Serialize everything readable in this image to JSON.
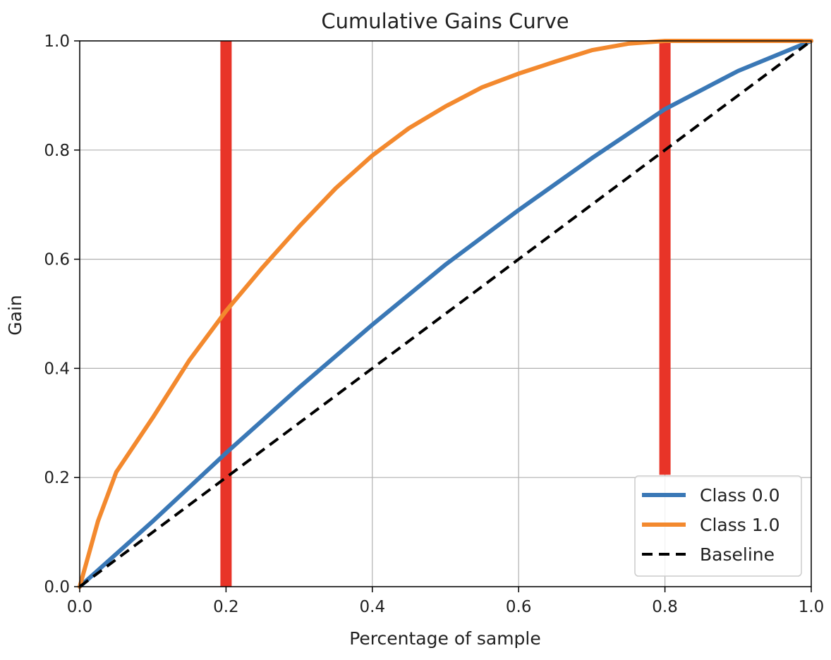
{
  "chart_data": {
    "type": "line",
    "title": "Cumulative Gains Curve",
    "xlabel": "Percentage of sample",
    "ylabel": "Gain",
    "xlim": [
      0,
      1
    ],
    "ylim": [
      0,
      1
    ],
    "xticks": [
      "0.0",
      "0.2",
      "0.4",
      "0.6",
      "0.8",
      "1.0"
    ],
    "yticks": [
      "0.0",
      "0.2",
      "0.4",
      "0.6",
      "0.8",
      "1.0"
    ],
    "grid": true,
    "legend_position": "lower-right",
    "series": [
      {
        "name": "Class 0.0",
        "color": "#3a78b6",
        "style": "solid",
        "x": [
          0,
          0.1,
          0.2,
          0.3,
          0.4,
          0.5,
          0.6,
          0.7,
          0.8,
          0.9,
          1.0
        ],
        "y": [
          0,
          0.12,
          0.245,
          0.365,
          0.48,
          0.59,
          0.69,
          0.785,
          0.875,
          0.945,
          1.0
        ]
      },
      {
        "name": "Class 1.0",
        "color": "#f3892e",
        "style": "solid",
        "x": [
          0,
          0.025,
          0.05,
          0.1,
          0.15,
          0.2,
          0.25,
          0.3,
          0.35,
          0.4,
          0.45,
          0.5,
          0.55,
          0.6,
          0.65,
          0.7,
          0.75,
          0.8,
          0.85,
          0.9,
          0.95,
          1.0
        ],
        "y": [
          0,
          0.12,
          0.21,
          0.31,
          0.415,
          0.505,
          0.585,
          0.66,
          0.73,
          0.79,
          0.84,
          0.88,
          0.915,
          0.94,
          0.962,
          0.983,
          0.995,
          1.0,
          1.0,
          1.0,
          1.0,
          1.0
        ]
      },
      {
        "name": "Baseline",
        "color": "#000000",
        "style": "dashed",
        "x": [
          0,
          1
        ],
        "y": [
          0,
          1
        ]
      }
    ],
    "annotations": [
      {
        "type": "vertical-line",
        "x": 0.2,
        "y_from": 0,
        "y_to": 1,
        "color": "#e83428"
      },
      {
        "type": "vertical-line",
        "x": 0.8,
        "y_from": 0.205,
        "y_to": 1,
        "color": "#e83428"
      }
    ]
  }
}
